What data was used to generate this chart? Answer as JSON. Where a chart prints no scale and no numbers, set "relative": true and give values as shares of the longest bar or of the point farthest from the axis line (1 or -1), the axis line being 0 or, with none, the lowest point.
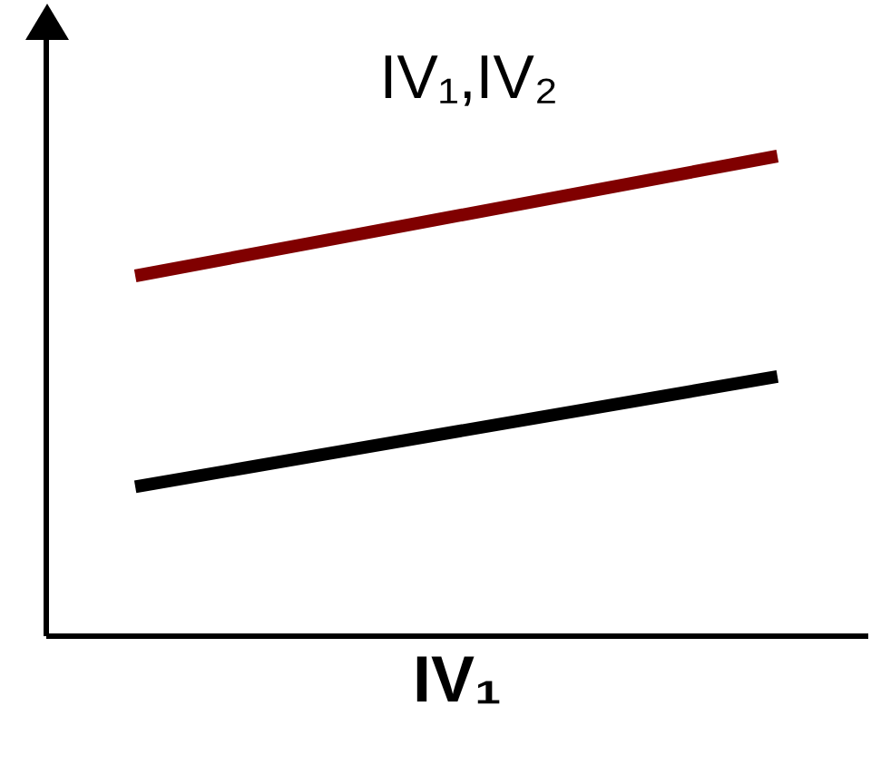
{
  "chart_data": {
    "type": "line",
    "xlabel": "IV₁",
    "relative": true,
    "categories": [
      null,
      null
    ],
    "series": [
      {
        "name": "IV₁,IV₂",
        "color": "#800000",
        "values": [
          0.75,
          1
        ]
      },
      {
        "color": "#000000",
        "values": [
          0.31,
          0.54
        ]
      }
    ]
  }
}
